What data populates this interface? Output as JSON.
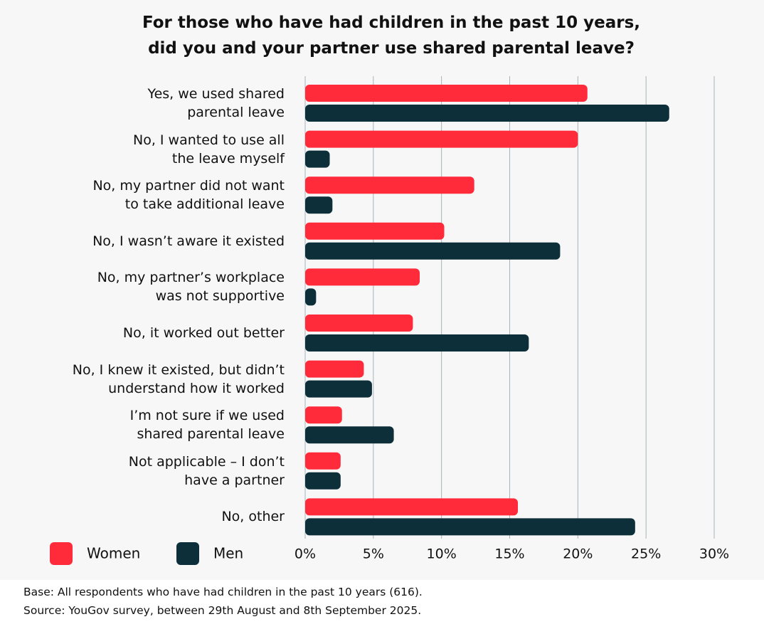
{
  "chart_data": {
    "type": "grouped-horizontal-bar",
    "title": "For those who have had children in the past 10 years,\ndid you and your partner use shared parental leave?",
    "categories": [
      "Yes, we used shared\nparental leave",
      "No, I wanted to use all\nthe leave myself",
      "No, my partner did not want\nto take additional leave",
      "No, I wasn’t aware it existed",
      "No, my partner’s workplace\nwas not supportive",
      "No, it worked out better",
      "No, I knew it existed, but didn’t\nunderstand how it worked",
      "I’m not sure if we used\nshared parental leave",
      "Not applicable – I don’t\nhave a partner",
      "No, other"
    ],
    "series": [
      {
        "name": "Women",
        "color": "#ff2a3a",
        "values": [
          20.7,
          20.0,
          12.4,
          10.2,
          8.4,
          7.9,
          4.3,
          2.7,
          2.6,
          15.6
        ]
      },
      {
        "name": "Men",
        "color": "#0d2f3a",
        "values": [
          26.7,
          1.8,
          2.0,
          18.7,
          0.8,
          16.4,
          4.9,
          6.5,
          2.6,
          24.2
        ]
      }
    ],
    "xlim": [
      0,
      30
    ],
    "xticks": [
      {
        "value": 0,
        "label": "0%"
      },
      {
        "value": 5,
        "label": "5%"
      },
      {
        "value": 10,
        "label": "10%"
      },
      {
        "value": 15,
        "label": "15%"
      },
      {
        "value": 20,
        "label": "20%"
      },
      {
        "value": 25,
        "label": "25%"
      },
      {
        "value": 30,
        "label": "30%"
      }
    ],
    "grid": true,
    "legend": "bottom-left",
    "notes": [
      "Base: All respondents who have had children in the past 10 years (616).",
      "Source: YouGov survey, between 29th August and 8th September 2025."
    ]
  }
}
